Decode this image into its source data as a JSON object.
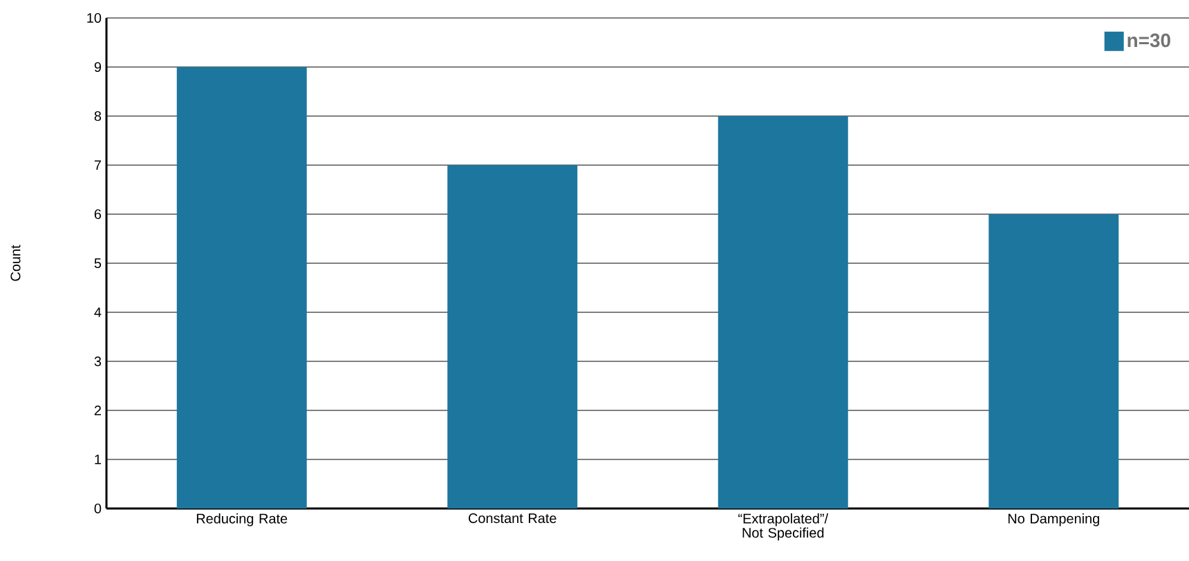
{
  "chart_data": {
    "type": "bar",
    "ylabel": "Count",
    "categories": [
      "Reducing Rate",
      "Constant Rate",
      "“Extrapolated”/ Not Specified",
      "No Dampening"
    ],
    "series": [
      {
        "name": "n=30",
        "color": "#1d769d",
        "values": [
          9,
          7,
          8,
          6
        ]
      }
    ],
    "ylim": [
      0,
      10
    ],
    "yticks": [
      0,
      1,
      2,
      3,
      4,
      5,
      6,
      7,
      8,
      9,
      10
    ],
    "grid": "y",
    "legend": "top right"
  }
}
